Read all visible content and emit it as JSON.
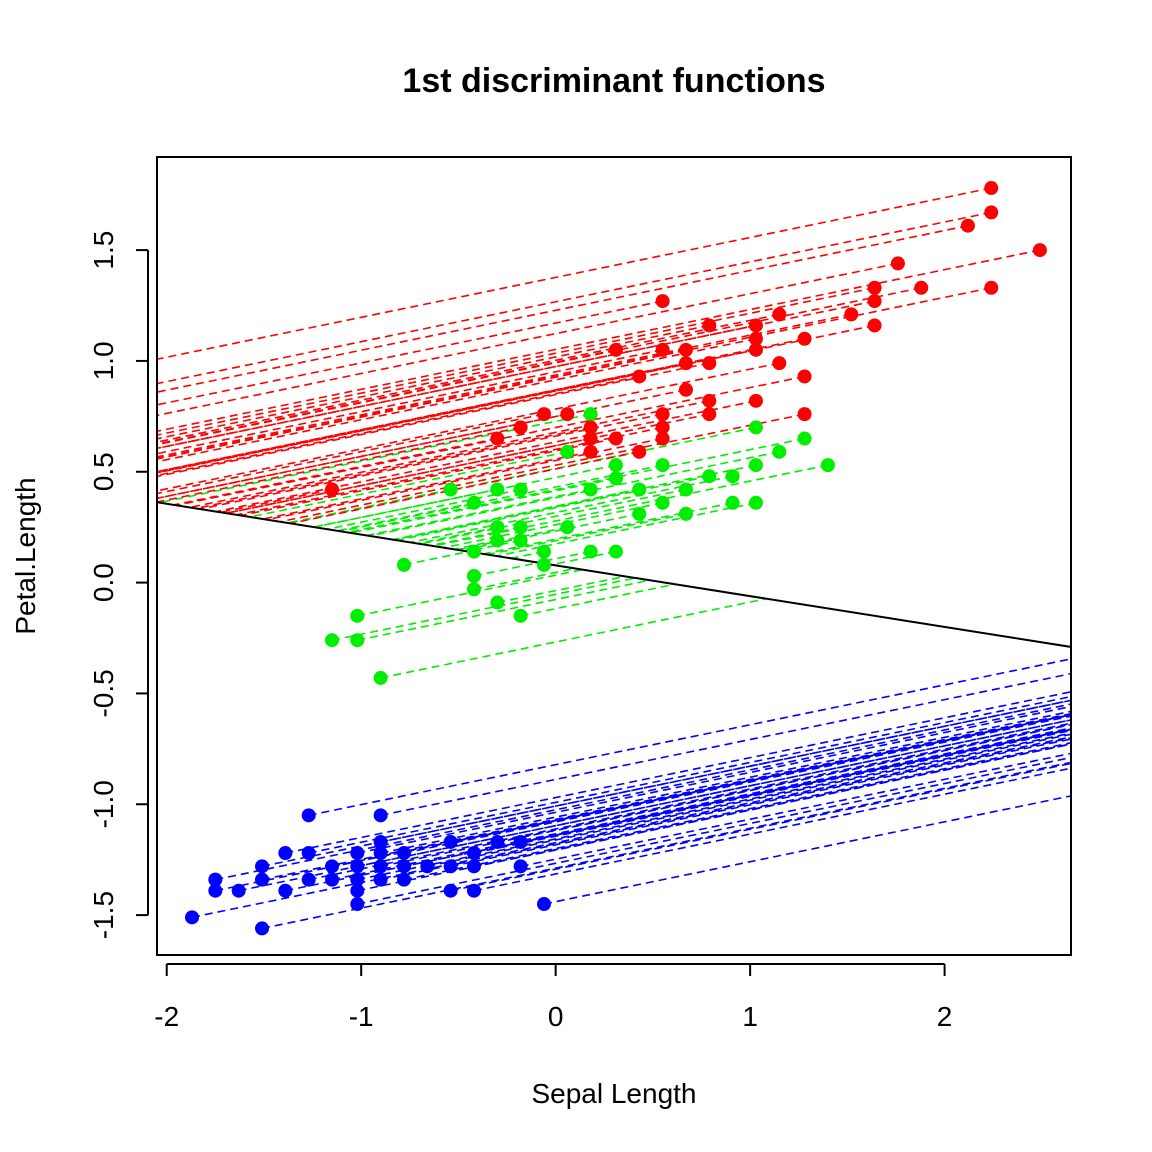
{
  "chart_data": {
    "type": "scatter",
    "title": "1st discriminant functions",
    "xlabel": "Sepal Length",
    "ylabel": "Petal.Length",
    "xlim": [
      -2.05,
      2.65
    ],
    "ylim": [
      -1.68,
      1.92
    ],
    "x_ticks": [
      -2,
      -1,
      0,
      1,
      2
    ],
    "x_tick_labels": [
      "-2",
      "-1",
      "0",
      "1",
      "2"
    ],
    "y_ticks": [
      -1.5,
      -1.0,
      -0.5,
      0.0,
      0.5,
      1.0,
      1.5
    ],
    "y_tick_labels": [
      "-1.5",
      "-1.0",
      "-0.5",
      "0.0",
      "0.5",
      "1.0",
      "1.5"
    ],
    "grid": false,
    "projection_slope": 0.18,
    "boundary": {
      "slope": -7.2,
      "intercept": 0.56
    },
    "boundary_color": "#000000",
    "series": [
      {
        "color": "#0000ff",
        "points": [
          [
            -1.87,
            -1.51
          ],
          [
            -1.51,
            -1.56
          ],
          [
            -1.75,
            -1.34
          ],
          [
            -1.75,
            -1.39
          ],
          [
            -1.63,
            -1.39
          ],
          [
            -1.51,
            -1.28
          ],
          [
            -1.51,
            -1.34
          ],
          [
            -1.39,
            -1.22
          ],
          [
            -1.39,
            -1.39
          ],
          [
            -1.27,
            -1.05
          ],
          [
            -1.27,
            -1.22
          ],
          [
            -1.27,
            -1.34
          ],
          [
            -1.15,
            -1.28
          ],
          [
            -1.15,
            -1.34
          ],
          [
            -1.02,
            -1.22
          ],
          [
            -1.02,
            -1.28
          ],
          [
            -1.02,
            -1.34
          ],
          [
            -1.02,
            -1.39
          ],
          [
            -1.02,
            -1.45
          ],
          [
            -0.9,
            -1.05
          ],
          [
            -0.9,
            -1.17
          ],
          [
            -0.9,
            -1.22
          ],
          [
            -0.9,
            -1.28
          ],
          [
            -0.9,
            -1.34
          ],
          [
            -0.78,
            -1.22
          ],
          [
            -0.78,
            -1.28
          ],
          [
            -0.78,
            -1.34
          ],
          [
            -0.66,
            -1.28
          ],
          [
            -0.54,
            -1.17
          ],
          [
            -0.54,
            -1.28
          ],
          [
            -0.54,
            -1.39
          ],
          [
            -0.42,
            -1.22
          ],
          [
            -0.42,
            -1.28
          ],
          [
            -0.42,
            -1.39
          ],
          [
            -0.3,
            -1.17
          ],
          [
            -0.18,
            -1.17
          ],
          [
            -0.18,
            -1.28
          ],
          [
            -0.06,
            -1.45
          ]
        ]
      },
      {
        "color": "#00ee00",
        "points": [
          [
            -1.15,
            -0.26
          ],
          [
            -1.02,
            -0.26
          ],
          [
            -1.02,
            -0.15
          ],
          [
            -0.9,
            -0.43
          ],
          [
            -0.78,
            0.08
          ],
          [
            -0.54,
            0.42
          ],
          [
            -0.42,
            0.36
          ],
          [
            -0.42,
            0.14
          ],
          [
            -0.42,
            0.03
          ],
          [
            -0.42,
            -0.03
          ],
          [
            -0.3,
            0.42
          ],
          [
            -0.3,
            0.25
          ],
          [
            -0.3,
            0.19
          ],
          [
            -0.3,
            -0.09
          ],
          [
            -0.18,
            0.42
          ],
          [
            -0.18,
            0.25
          ],
          [
            -0.18,
            0.19
          ],
          [
            -0.18,
            -0.15
          ],
          [
            -0.06,
            0.14
          ],
          [
            -0.06,
            0.08
          ],
          [
            0.06,
            0.59
          ],
          [
            0.06,
            0.25
          ],
          [
            0.18,
            0.76
          ],
          [
            0.18,
            0.42
          ],
          [
            0.18,
            0.14
          ],
          [
            0.31,
            0.53
          ],
          [
            0.31,
            0.47
          ],
          [
            0.31,
            0.14
          ],
          [
            0.43,
            0.42
          ],
          [
            0.43,
            0.31
          ],
          [
            0.55,
            0.53
          ],
          [
            0.55,
            0.36
          ],
          [
            0.67,
            0.42
          ],
          [
            0.67,
            0.31
          ],
          [
            0.79,
            0.48
          ],
          [
            0.91,
            0.48
          ],
          [
            0.91,
            0.36
          ],
          [
            1.03,
            0.7
          ],
          [
            1.03,
            0.53
          ],
          [
            1.03,
            0.36
          ],
          [
            1.15,
            0.59
          ],
          [
            1.28,
            0.65
          ],
          [
            1.4,
            0.53
          ]
        ]
      },
      {
        "color": "#ff0000",
        "points": [
          [
            -1.15,
            0.42
          ],
          [
            -0.3,
            0.65
          ],
          [
            -0.18,
            0.7
          ],
          [
            -0.06,
            0.76
          ],
          [
            0.06,
            0.76
          ],
          [
            0.18,
            0.7
          ],
          [
            0.18,
            0.65
          ],
          [
            0.18,
            0.59
          ],
          [
            0.31,
            0.65
          ],
          [
            0.31,
            1.05
          ],
          [
            0.43,
            0.93
          ],
          [
            0.43,
            0.59
          ],
          [
            0.55,
            1.27
          ],
          [
            0.55,
            1.05
          ],
          [
            0.55,
            0.76
          ],
          [
            0.55,
            0.7
          ],
          [
            0.55,
            0.65
          ],
          [
            0.67,
            1.05
          ],
          [
            0.67,
            0.99
          ],
          [
            0.67,
            0.87
          ],
          [
            0.79,
            1.16
          ],
          [
            0.79,
            0.99
          ],
          [
            0.79,
            0.82
          ],
          [
            0.79,
            0.76
          ],
          [
            1.03,
            1.16
          ],
          [
            1.03,
            1.1
          ],
          [
            1.03,
            1.05
          ],
          [
            1.03,
            0.82
          ],
          [
            1.15,
            1.21
          ],
          [
            1.15,
            0.99
          ],
          [
            1.28,
            1.1
          ],
          [
            1.28,
            0.93
          ],
          [
            1.28,
            0.76
          ],
          [
            1.52,
            1.21
          ],
          [
            1.64,
            1.33
          ],
          [
            1.64,
            1.27
          ],
          [
            1.64,
            1.16
          ],
          [
            1.76,
            1.44
          ],
          [
            1.88,
            1.33
          ],
          [
            2.12,
            1.61
          ],
          [
            2.24,
            1.78
          ],
          [
            2.24,
            1.67
          ],
          [
            2.24,
            1.33
          ],
          [
            2.49,
            1.5
          ]
        ]
      }
    ]
  }
}
